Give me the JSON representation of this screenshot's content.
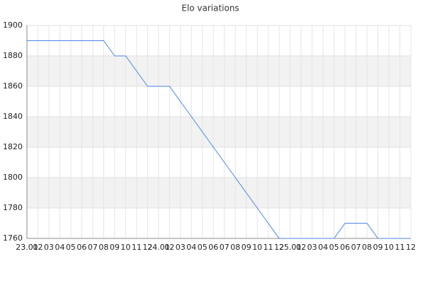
{
  "chart_data": {
    "type": "line",
    "title": "Elo variations",
    "categories": [
      "23.01",
      "02",
      "03",
      "04",
      "05",
      "06",
      "07",
      "08",
      "09",
      "10",
      "11",
      "12",
      "24.01",
      "02",
      "03",
      "04",
      "05",
      "06",
      "07",
      "08",
      "09",
      "10",
      "11",
      "12",
      "25.01",
      "02",
      "03",
      "04",
      "05",
      "06",
      "07",
      "08",
      "09",
      "10",
      "11",
      "12"
    ],
    "values": [
      1890,
      1890,
      1890,
      1890,
      1890,
      1890,
      1890,
      1890,
      1880,
      1880,
      1870,
      1860,
      1860,
      1860,
      1850,
      1840,
      1830,
      1820,
      1810,
      1800,
      1790,
      1780,
      1770,
      1760,
      1760,
      1760,
      1760,
      1760,
      1760,
      1770,
      1770,
      1770,
      1760,
      1760,
      1760,
      1760
    ],
    "color": "#4a86e8",
    "ylim": [
      1760,
      1900
    ],
    "yticks": [
      1760,
      1780,
      1800,
      1820,
      1840,
      1860,
      1880,
      1900
    ],
    "grid": true,
    "band_color": "#f2f2f2"
  }
}
